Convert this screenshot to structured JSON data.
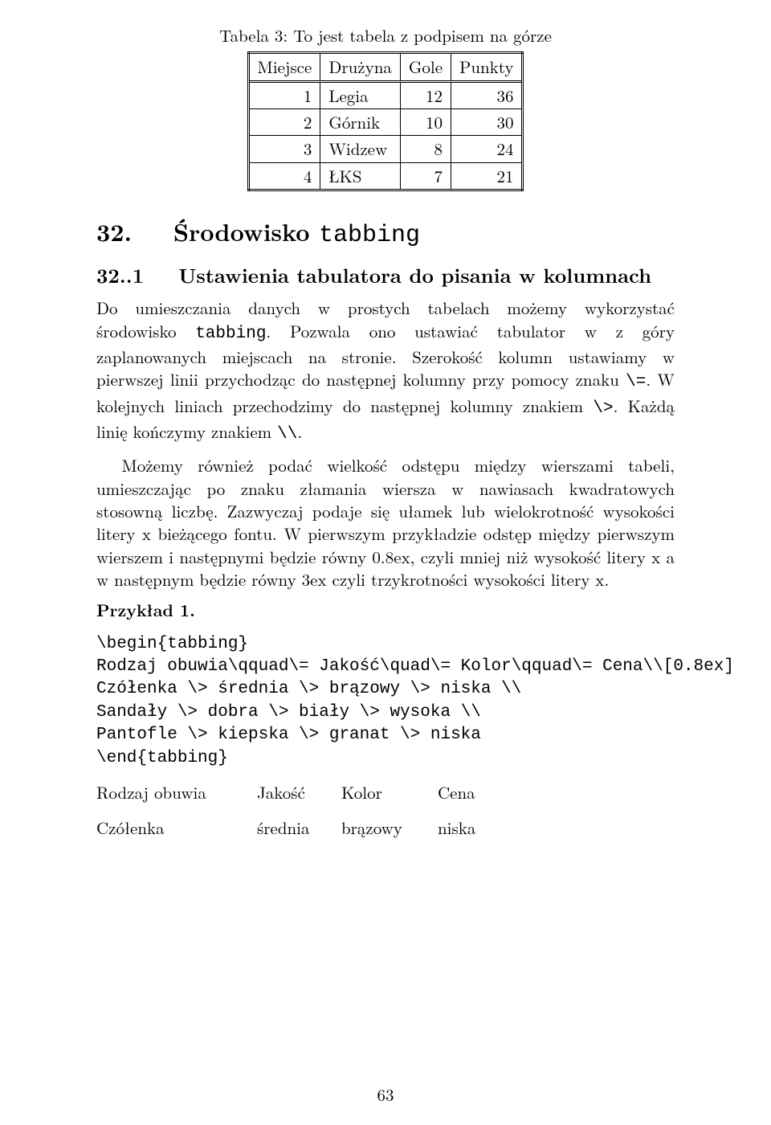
{
  "table": {
    "caption": "Tabela 3: To jest tabela z podpisem na górze",
    "headers": [
      "Miejsce",
      "Drużyna",
      "Gole",
      "Punkty"
    ],
    "rows": [
      [
        "1",
        "Legia",
        "12",
        "36"
      ],
      [
        "2",
        "Górnik",
        "10",
        "30"
      ],
      [
        "3",
        "Widzew",
        "8",
        "24"
      ],
      [
        "4",
        "ŁKS",
        "7",
        "21"
      ]
    ]
  },
  "section": {
    "number": "32.",
    "title_pre": "Środowisko ",
    "title_tt": "tabbing"
  },
  "subsection": {
    "number": "32..1",
    "title": "Ustawienia tabulatora do pisania w kolumnach"
  },
  "para1_a": "Do umieszczania danych w prostych tabelach możemy wykorzystać środowisko ",
  "para1_tt": "tabbing",
  "para1_b": ". Pozwala ono ustawiać tabulator w z góry zaplanowanych miejscach na stronie. Szerokość kolumn ustawiamy w pierwszej linii przychodząc do następnej kolumny przy pomocy znaku ",
  "para1_c": "\\=",
  "para1_d": ". W kolejnych liniach przechodzimy do następnej kolumny znakiem ",
  "para1_e": "\\>",
  "para1_f": ". Każdą linię kończymy znakiem ",
  "para1_g": "\\\\",
  "para1_h": ".",
  "para2": "Możemy również podać wielkość odstępu między wierszami tabeli, umieszczając po znaku złamania wiersza w nawiasach kwadratowych stosowną liczbę. Zazwyczaj podaje się ułamek lub wielokrotność wysokości litery x bieżącego fontu. W pierwszym przykładzie odstęp między pierwszym wierszem i następnymi będzie równy 0.8ex, czyli mniej niż wysokość litery x a w następnym będzie równy 3ex czyli trzykrotności wysokości litery x.",
  "example_label": "Przykład 1.",
  "code": "\\begin{tabbing}\nRodzaj obuwia\\qquad\\= Jakość\\quad\\= Kolor\\qquad\\= Cena\\\\[0.8ex]\nCzółenka \\> średnia \\> brązowy \\> niska \\\\\nSandały \\> dobra \\> biały \\> wysoka \\\\\nPantofle \\> kiepska \\> granat \\> niska\n\\end{tabbing}",
  "result": {
    "header": [
      "Rodzaj obuwia",
      "Jakość",
      "Kolor",
      "Cena"
    ],
    "row1": [
      "Czółenka",
      "średnia",
      "brązowy",
      "niska"
    ]
  },
  "page_number": "63",
  "colors": {
    "background": "#ffffff",
    "text": "#000000",
    "border": "#000000"
  }
}
